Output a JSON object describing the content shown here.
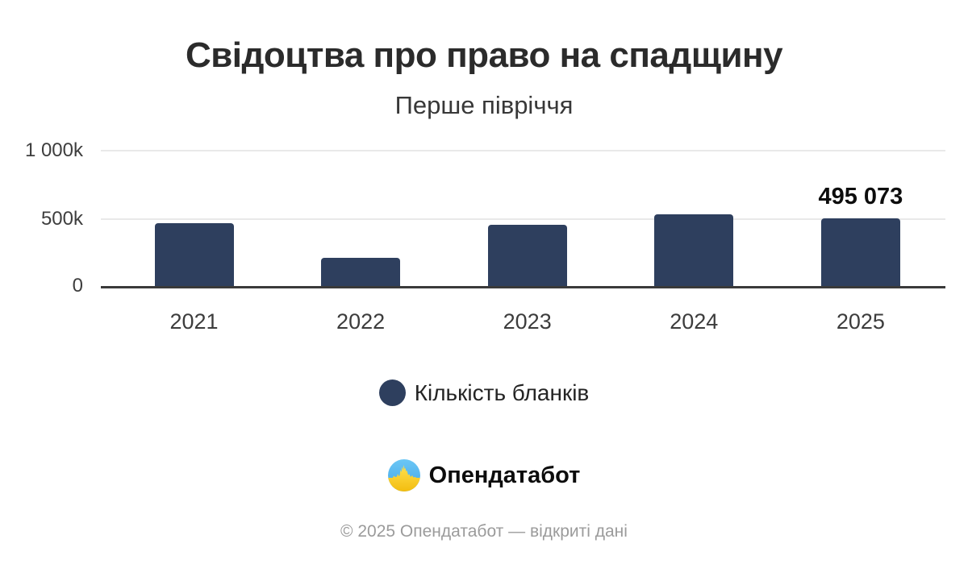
{
  "header": {
    "title": "Свідоцтва про право на спадщину",
    "subtitle": "Перше півріччя"
  },
  "chart_data": {
    "type": "bar",
    "title": "Свідоцтва про право на спадщину",
    "subtitle": "Перше півріччя",
    "categories": [
      "2021",
      "2022",
      "2023",
      "2024",
      "2025"
    ],
    "series": [
      {
        "name": "Кількість бланків",
        "values": [
          460000,
          205000,
          450000,
          525000,
          495073
        ]
      }
    ],
    "value_labels": {
      "2025": "495 073"
    },
    "yticks": [
      {
        "value": 0,
        "label": "0"
      },
      {
        "value": 500000,
        "label": "500k"
      },
      {
        "value": 1000000,
        "label": "1 000k"
      }
    ],
    "ylim": [
      0,
      1000000
    ],
    "grid": "horizontal",
    "legend_position": "bottom",
    "bar_color": "#2e3f5e"
  },
  "legend": {
    "items": [
      {
        "label": "Кількість бланків",
        "color": "#2e3f5e"
      }
    ]
  },
  "branding": {
    "logo_text": "Опендатабот",
    "logo_icon": "opendatabot-pulse-circle",
    "logo_blue": "#55b8ee",
    "logo_yellow": "#ffd93c"
  },
  "footer": {
    "text": "© 2025 Опендатабот — відкриті дані"
  },
  "colors": {
    "background": "#ffffff",
    "bar": "#2e3f5e",
    "title": "#2b2b2b",
    "axis_text": "#3c3c3c",
    "gridline": "#e9e9e9",
    "axis_line": "#3a3a3a",
    "footer_text": "#9b9b9b"
  }
}
